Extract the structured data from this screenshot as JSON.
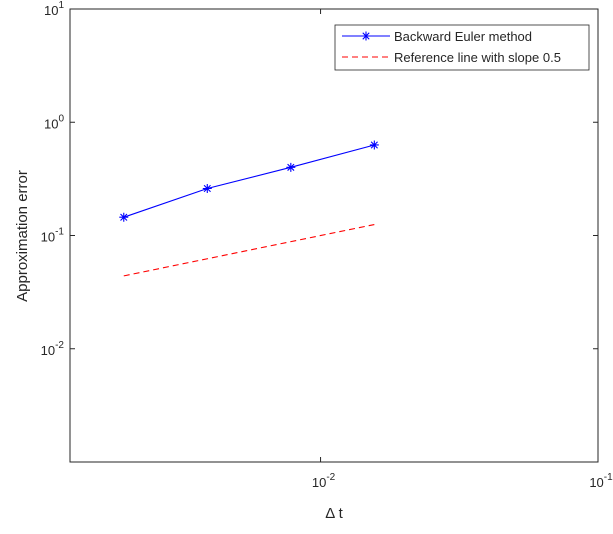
{
  "chart_data": {
    "type": "line",
    "xscale": "log",
    "yscale": "log",
    "xlabel": "Δ t",
    "ylabel": "Approximation error",
    "xlim": [
      0.00125,
      0.1
    ],
    "ylim": [
      0.001,
      10
    ],
    "xticks": [
      {
        "value": 0.01,
        "base": "10",
        "exp": "-2"
      },
      {
        "value": 0.1,
        "base": "10",
        "exp": "-1"
      }
    ],
    "yticks": [
      {
        "value": 10,
        "base": "10",
        "exp": "1"
      },
      {
        "value": 1,
        "base": "10",
        "exp": "0"
      },
      {
        "value": 0.1,
        "base": "10",
        "exp": "-1"
      },
      {
        "value": 0.01,
        "base": "10",
        "exp": "-2"
      }
    ],
    "series": [
      {
        "name": "Backward Euler method",
        "color": "#0000ff",
        "line": "solid",
        "marker": "asterisk",
        "x": [
          0.001953,
          0.003906,
          0.007813,
          0.015625
        ],
        "y": [
          0.145,
          0.26,
          0.4,
          0.63
        ]
      },
      {
        "name": "Reference line with slope 0.5",
        "color": "#ff0000",
        "line": "dashed",
        "marker": "none",
        "x": [
          0.001953,
          0.015625
        ],
        "y": [
          0.044,
          0.125
        ]
      }
    ],
    "legend": "top-right",
    "grid": false
  }
}
